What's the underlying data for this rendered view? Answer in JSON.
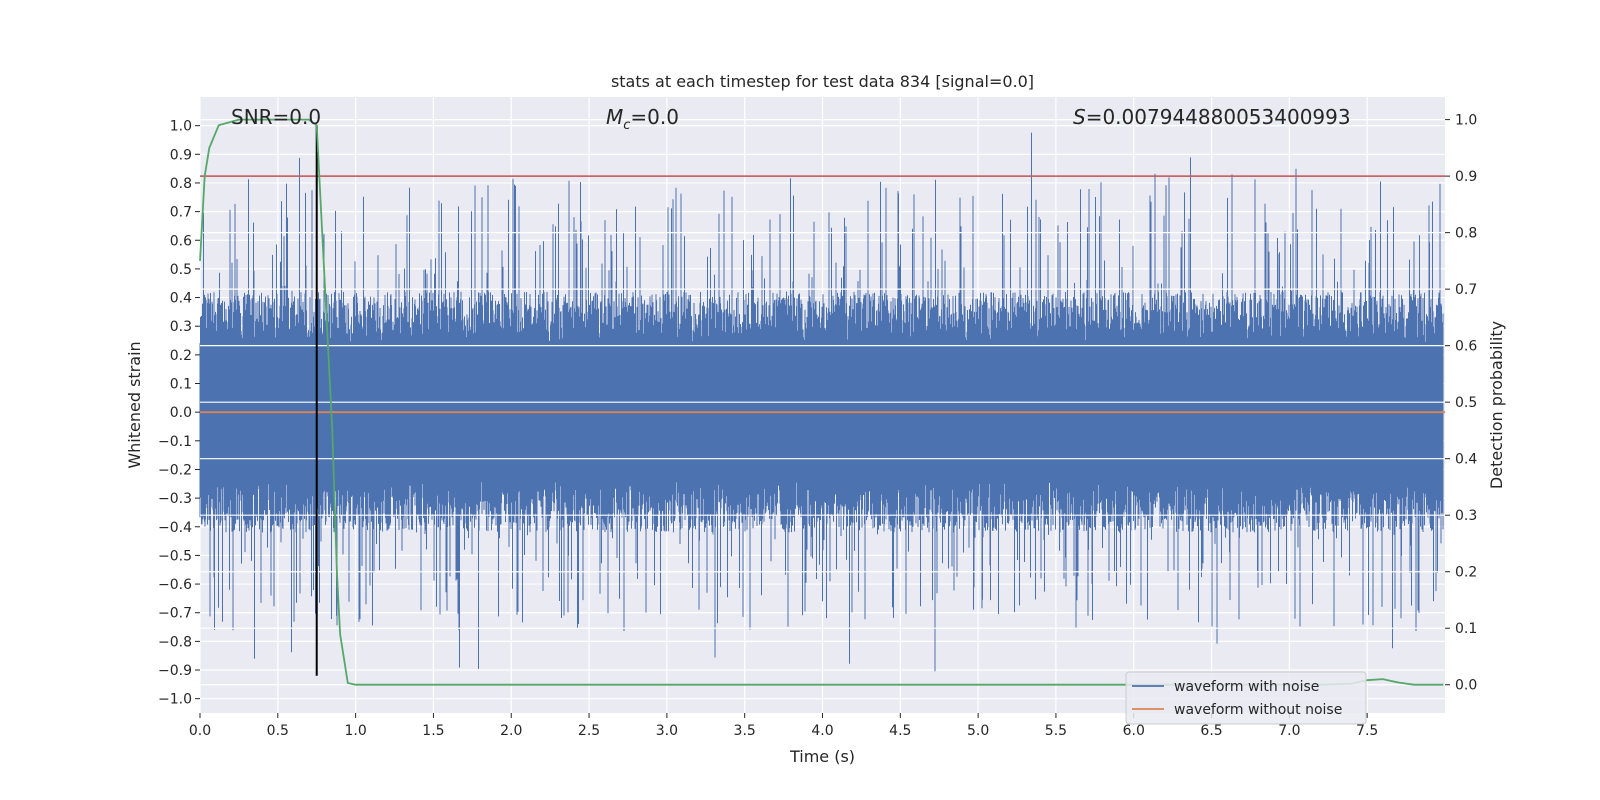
{
  "chart_data": {
    "type": "line",
    "title": "stats at each timestep for test data 834 [signal=0.0]",
    "xlabel": "Time (s)",
    "ylabel": "Whitened strain",
    "y2label": "Detection probability",
    "xlim": [
      0.0,
      8.0
    ],
    "ylim": [
      -1.05,
      1.1
    ],
    "y2lim": [
      -0.05,
      1.04
    ],
    "xticks": [
      "0.0",
      "0.5",
      "1.0",
      "1.5",
      "2.0",
      "2.5",
      "3.0",
      "3.5",
      "4.0",
      "4.5",
      "5.0",
      "5.5",
      "6.0",
      "6.5",
      "7.0",
      "7.5"
    ],
    "yticks": [
      "1.0",
      "0.9",
      "0.8",
      "0.7",
      "0.6",
      "0.5",
      "0.4",
      "0.3",
      "0.2",
      "0.1",
      "0.0",
      "-0.1",
      "-0.2",
      "-0.3",
      "-0.4",
      "-0.5",
      "-0.6",
      "-0.7",
      "-0.8",
      "-0.9",
      "-1.0"
    ],
    "y2ticks": [
      "1.0",
      "0.9",
      "0.8",
      "0.7",
      "0.6",
      "0.5",
      "0.4",
      "0.3",
      "0.2",
      "0.1",
      "0.0"
    ],
    "annotations": {
      "snr": "SNR=0.0",
      "mc_symbol": "M",
      "mc_sub": "c",
      "mc_value": "=0.0",
      "s_symbol": "S",
      "s_value": "=0.007944880053400993"
    },
    "threshold": {
      "axis": "right",
      "value": 0.9,
      "color": "#c44e52"
    },
    "marker_time": 0.75,
    "series": [
      {
        "name": "waveform with noise",
        "color": "#4c72b0",
        "axis": "left",
        "kind": "noise",
        "duration": 7.99,
        "body_amplitude": 0.4,
        "peak_max": 1.0,
        "peak_min": -0.92
      },
      {
        "name": "waveform without noise",
        "color": "#dd8452",
        "axis": "left",
        "x": [
          0.0,
          8.0
        ],
        "y": [
          0.0,
          0.0
        ]
      },
      {
        "name": "detection probability",
        "color": "#55a868",
        "axis": "right",
        "x": [
          0.0,
          0.03,
          0.06,
          0.12,
          0.25,
          0.5,
          0.7,
          0.75,
          0.85,
          0.88,
          0.9,
          0.95,
          1.0,
          1.5,
          2.0,
          3.0,
          4.0,
          5.0,
          6.0,
          7.0,
          7.2,
          7.4,
          7.5,
          7.6,
          7.7,
          7.8,
          7.99
        ],
        "y": [
          0.75,
          0.9,
          0.95,
          0.99,
          1.0,
          1.0,
          1.0,
          0.99,
          0.45,
          0.2,
          0.09,
          0.003,
          0.0,
          0.0,
          0.0,
          0.0,
          0.0,
          0.0,
          0.0,
          0.0,
          0.0,
          0.002,
          0.008,
          0.01,
          0.004,
          0.0,
          0.0
        ]
      }
    ],
    "legend": {
      "position": "lower-right",
      "entries": [
        {
          "label": "waveform with noise",
          "color": "#4c72b0"
        },
        {
          "label": "waveform without noise",
          "color": "#dd8452"
        }
      ]
    }
  }
}
